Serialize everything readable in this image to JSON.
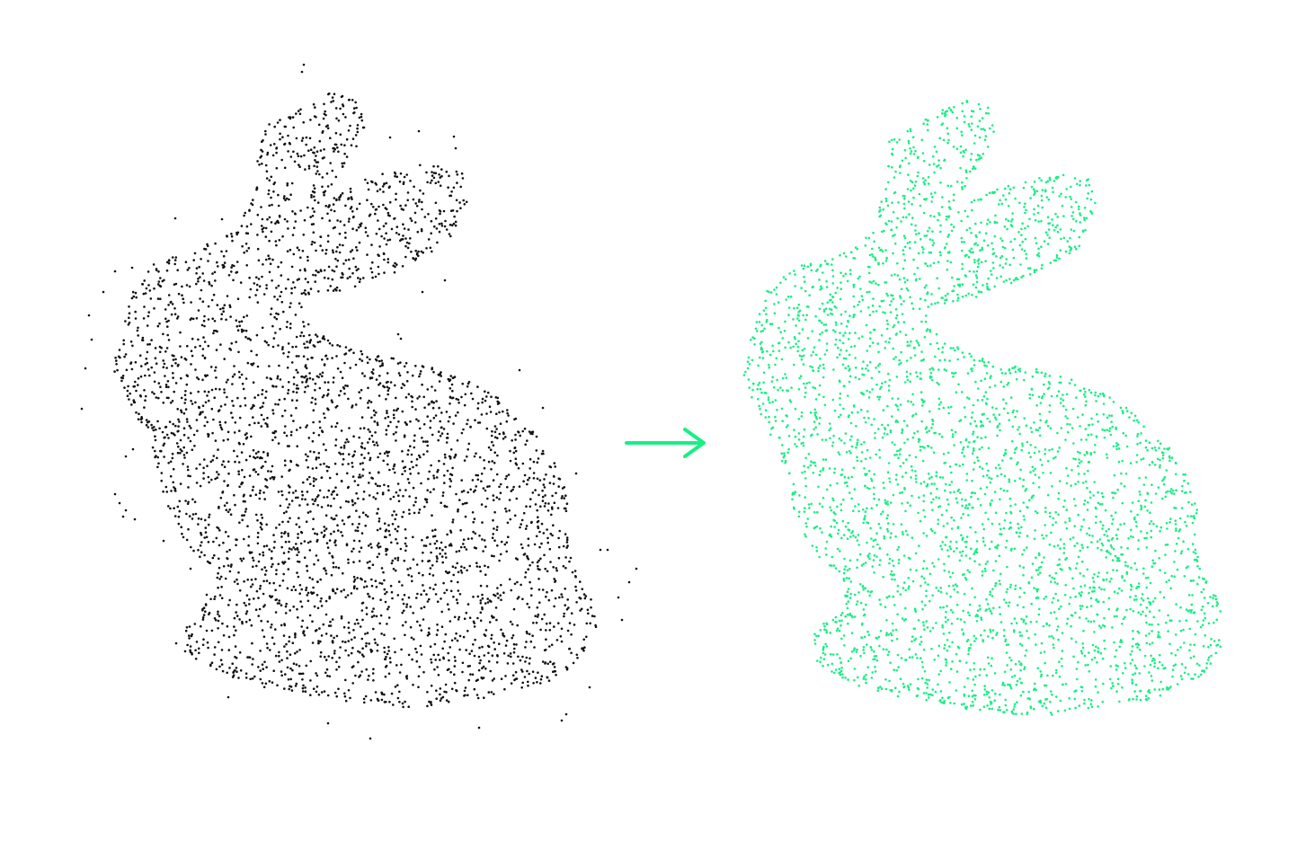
{
  "figure": {
    "description_name": "point-cloud-denoising",
    "panels": [
      {
        "id": "noisy",
        "color": "#111111"
      },
      {
        "id": "denoised",
        "color": "#1aee86"
      }
    ],
    "arrow": {
      "color": "#1aee86"
    }
  }
}
